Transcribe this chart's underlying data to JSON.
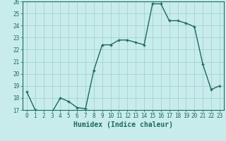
{
  "title": "",
  "xlabel": "Humidex (Indice chaleur)",
  "ylabel": "",
  "x": [
    0,
    1,
    2,
    3,
    4,
    5,
    6,
    7,
    8,
    9,
    10,
    11,
    12,
    13,
    14,
    15,
    16,
    17,
    18,
    19,
    20,
    21,
    22,
    23
  ],
  "y": [
    18.5,
    17.0,
    16.9,
    16.8,
    18.0,
    17.7,
    17.2,
    17.1,
    20.3,
    22.4,
    22.4,
    22.8,
    22.8,
    22.6,
    22.4,
    25.8,
    25.8,
    24.4,
    24.4,
    24.2,
    23.9,
    20.8,
    18.7,
    19.0
  ],
  "ylim": [
    17,
    26
  ],
  "xlim": [
    -0.5,
    23.5
  ],
  "yticks": [
    17,
    18,
    19,
    20,
    21,
    22,
    23,
    24,
    25,
    26
  ],
  "xticks": [
    0,
    1,
    2,
    3,
    4,
    5,
    6,
    7,
    8,
    9,
    10,
    11,
    12,
    13,
    14,
    15,
    16,
    17,
    18,
    19,
    20,
    21,
    22,
    23
  ],
  "line_color": "#1a6b5a",
  "marker": "+",
  "markersize": 3.5,
  "linewidth": 1.0,
  "bg_color": "#c8ecec",
  "grid_color": "#a0cccc",
  "tick_color": "#1a6b5a",
  "label_color": "#1a6b5a",
  "font_family": "monospace",
  "xlabel_fontsize": 7.0,
  "tick_fontsize": 5.5
}
